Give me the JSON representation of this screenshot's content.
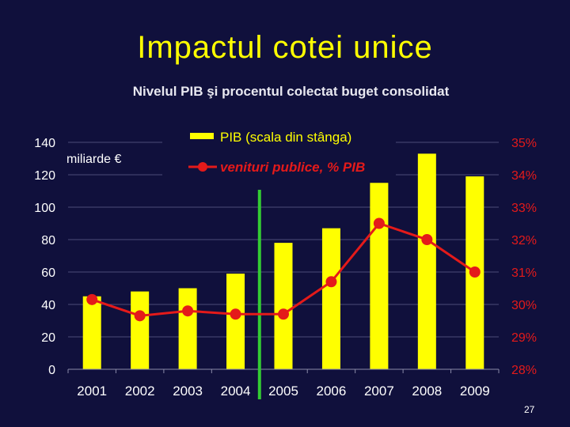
{
  "slide": {
    "title": "Impactul cotei unice",
    "page_number": "27"
  },
  "chart_data": {
    "type": "bar",
    "title": "Nivelul PIB şi procentul colectat buget consolidat",
    "categories": [
      "2001",
      "2002",
      "2003",
      "2004",
      "2005",
      "2006",
      "2007",
      "2008",
      "2009"
    ],
    "series": [
      {
        "name": "PIB (scala din stânga)",
        "type": "bar",
        "axis": "left",
        "color": "#ffff00",
        "values": [
          45,
          48,
          50,
          59,
          78,
          87,
          115,
          133,
          119
        ]
      },
      {
        "name": "venituri publice, % PIB",
        "type": "line",
        "axis": "right",
        "color": "#e41a1a",
        "values": [
          30.15,
          29.65,
          29.8,
          29.7,
          29.7,
          30.7,
          32.5,
          32.0,
          31.0
        ]
      }
    ],
    "ylabel_left": "miliarde €",
    "ylim_left": [
      0,
      140
    ],
    "yticks_left": [
      "0",
      "20",
      "40",
      "60",
      "80",
      "100",
      "120",
      "140"
    ],
    "ylim_right": [
      28,
      35
    ],
    "yticks_right": [
      "28%",
      "29%",
      "30%",
      "31%",
      "32%",
      "33%",
      "34%",
      "35%"
    ],
    "grid": true,
    "legend": "top-center",
    "marker_line": {
      "category": "2004",
      "color": "#33cc33"
    }
  }
}
